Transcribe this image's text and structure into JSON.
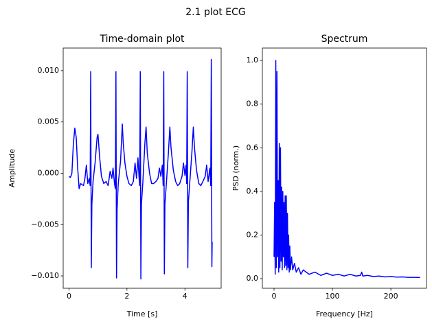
{
  "suptitle": "2.1 plot ECG",
  "chart_data": [
    {
      "type": "line",
      "title": "Time-domain plot",
      "xlabel": "Time [s]",
      "ylabel": "Amplitude",
      "xlim": [
        -0.2,
        5.25
      ],
      "ylim": [
        -0.0112,
        0.0122
      ],
      "xticks": [
        0,
        2,
        4
      ],
      "yticks": [
        {
          "value": -0.01,
          "label": "−0.010"
        },
        {
          "value": -0.005,
          "label": "−0.005"
        },
        {
          "value": 0,
          "label": "0.000"
        },
        {
          "value": 0.005,
          "label": "0.005"
        },
        {
          "value": 0.01,
          "label": "0.010"
        }
      ],
      "grid": false,
      "series": [
        {
          "color": "#0000ff",
          "x": [
            0,
            0.05,
            0.1,
            0.15,
            0.2,
            0.25,
            0.3,
            0.35,
            0.4,
            0.5,
            0.55,
            0.6,
            0.65,
            0.7,
            0.73,
            0.75,
            0.77,
            0.79,
            0.83,
            0.9,
            0.97,
            1.0,
            1.06,
            1.12,
            1.2,
            1.28,
            1.35,
            1.42,
            1.48,
            1.52,
            1.57,
            1.6,
            1.62,
            1.64,
            1.66,
            1.7,
            1.78,
            1.84,
            1.87,
            1.93,
            2.0,
            2.07,
            2.15,
            2.22,
            2.28,
            2.33,
            2.38,
            2.42,
            2.44,
            2.46,
            2.48,
            2.5,
            2.55,
            2.62,
            2.66,
            2.7,
            2.78,
            2.85,
            2.92,
            3.0,
            3.07,
            3.12,
            3.17,
            3.22,
            3.25,
            3.27,
            3.29,
            3.31,
            3.36,
            3.43,
            3.48,
            3.52,
            3.6,
            3.68,
            3.75,
            3.82,
            3.9,
            3.95,
            4.0,
            4.04,
            4.06,
            4.08,
            4.1,
            4.12,
            4.17,
            4.24,
            4.29,
            4.33,
            4.4,
            4.48,
            4.55,
            4.62,
            4.7,
            4.75,
            4.8,
            4.86,
            4.89,
            4.91,
            4.93,
            4.94
          ],
          "values": [
            -0.0003,
            -0.0004,
            0.0,
            0.0028,
            0.0044,
            0.0035,
            0.0005,
            -0.0015,
            -0.001,
            -0.0012,
            -0.0005,
            0.0008,
            -0.001,
            -0.0005,
            -0.0012,
            0.0099,
            -0.0092,
            -0.003,
            -0.0008,
            0.001,
            0.0035,
            0.0038,
            0.0015,
            -0.0003,
            -0.001,
            -0.0008,
            -0.0012,
            0.0002,
            -0.0005,
            0.0005,
            -0.001,
            -0.0015,
            0.0099,
            -0.0102,
            -0.0035,
            -0.001,
            0.0012,
            0.0048,
            0.003,
            0.001,
            -0.0003,
            -0.001,
            -0.0012,
            -0.0008,
            0.001,
            -0.0005,
            0.0015,
            -0.0005,
            -0.0012,
            0.0099,
            -0.0103,
            -0.003,
            -0.0008,
            0.003,
            0.0045,
            0.002,
            0.0,
            -0.001,
            -0.001,
            -0.0008,
            -0.0005,
            0.0005,
            -0.0003,
            0.0008,
            -0.0012,
            0.0099,
            -0.0098,
            -0.003,
            -0.001,
            0.002,
            0.0045,
            0.0025,
            0.0003,
            -0.0008,
            -0.0012,
            -0.001,
            -0.0003,
            0.001,
            -0.0002,
            0.0008,
            -0.001,
            0.0099,
            -0.0092,
            -0.0028,
            -0.0008,
            0.002,
            0.0045,
            0.0025,
            0.0003,
            -0.001,
            -0.0012,
            -0.0008,
            -0.0003,
            0.0008,
            -0.0008,
            0.0005,
            -0.0012,
            0.0111,
            -0.0091,
            -0.0067
          ]
        }
      ]
    },
    {
      "type": "line",
      "title": "Spectrum",
      "xlabel": "Frequency [Hz]",
      "ylabel": "PSD (norm.)",
      "xlim": [
        -20,
        261
      ],
      "ylim": [
        -0.044,
        1.057
      ],
      "xticks": [
        0,
        100,
        200
      ],
      "yticks": [
        {
          "value": 0,
          "label": "0.0"
        },
        {
          "value": 0.2,
          "label": "0.2"
        },
        {
          "value": 0.4,
          "label": "0.4"
        },
        {
          "value": 0.6,
          "label": "0.6"
        },
        {
          "value": 0.8,
          "label": "0.8"
        },
        {
          "value": 1,
          "label": "1.0"
        }
      ],
      "grid": false,
      "series": [
        {
          "color": "#0000ff",
          "x": [
            0,
            1,
            2,
            3,
            4,
            5,
            6,
            7,
            8,
            9,
            10,
            11,
            12,
            13,
            14,
            15,
            16,
            17,
            18,
            19,
            20,
            21,
            22,
            23,
            24,
            25,
            26,
            27,
            28,
            30,
            32,
            35,
            38,
            42,
            46,
            50,
            60,
            70,
            80,
            90,
            100,
            110,
            120,
            130,
            140,
            148,
            150,
            152,
            160,
            170,
            180,
            190,
            200,
            210,
            220,
            230,
            240,
            250
          ],
          "values": [
            0.1,
            0.35,
            0.02,
            1.0,
            0.05,
            0.95,
            0.1,
            0.45,
            0.03,
            0.62,
            0.05,
            0.6,
            0.08,
            0.42,
            0.04,
            0.4,
            0.1,
            0.35,
            0.05,
            0.38,
            0.06,
            0.38,
            0.04,
            0.3,
            0.05,
            0.2,
            0.03,
            0.15,
            0.04,
            0.1,
            0.04,
            0.07,
            0.03,
            0.05,
            0.02,
            0.04,
            0.02,
            0.03,
            0.015,
            0.025,
            0.015,
            0.02,
            0.012,
            0.02,
            0.012,
            0.015,
            0.03,
            0.012,
            0.015,
            0.01,
            0.012,
            0.008,
            0.01,
            0.007,
            0.008,
            0.006,
            0.006,
            0.005
          ]
        }
      ]
    }
  ]
}
